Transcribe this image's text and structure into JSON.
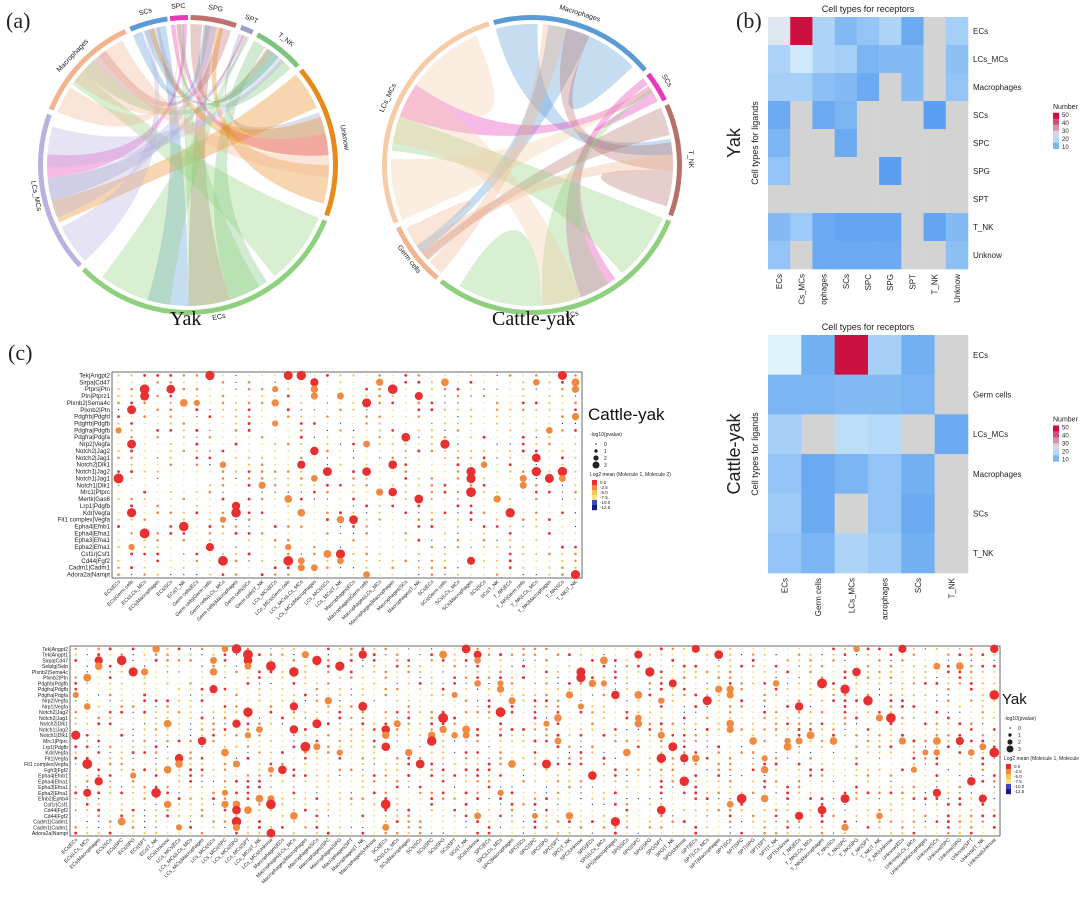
{
  "panel_labels": {
    "a": "(a)",
    "b": "(b)",
    "c": "(c)"
  },
  "chord_yak": {
    "title": "Yak",
    "sectors": [
      {
        "label": "SCs",
        "color": "#5b9bd5",
        "start": 337,
        "end": 352
      },
      {
        "label": "SPC",
        "color": "#e83ab8",
        "start": 353,
        "end": 360
      },
      {
        "label": "SPG",
        "color": "#c0716d",
        "start": 1,
        "end": 19
      },
      {
        "label": "SPT",
        "color": "#9e9ec8",
        "start": 21,
        "end": 26
      },
      {
        "label": "T_NK",
        "color": "#7cc47f",
        "start": 28,
        "end": 48
      },
      {
        "label": "Unknow",
        "color": "#e88a1a",
        "start": 50,
        "end": 110
      },
      {
        "label": "ECs",
        "color": "#8ed07e",
        "start": 112,
        "end": 225
      },
      {
        "label": "LCs_MCs",
        "color": "#b8b2e0",
        "start": 227,
        "end": 290
      },
      {
        "label": "Macrophages",
        "color": "#f2b58f",
        "start": 292,
        "end": 335
      }
    ]
  },
  "chord_cy": {
    "title": "Cattle-yak",
    "sectors": [
      {
        "label": "Macrophages",
        "color": "#5b9bd5",
        "start": 345,
        "end": 50
      },
      {
        "label": "SCs",
        "color": "#e83ab8",
        "start": 52,
        "end": 64
      },
      {
        "label": "T_NK",
        "color": "#b5726a",
        "start": 66,
        "end": 110
      },
      {
        "label": "ECs",
        "color": "#8ed07e",
        "start": 112,
        "end": 218
      },
      {
        "label": "Germ cells",
        "color": "#f2b58f",
        "start": 220,
        "end": 245
      },
      {
        "label": "LCs_MCs",
        "color": "#f6cba8",
        "start": 247,
        "end": 343
      }
    ]
  },
  "heatmap_yak": {
    "title": "Cell types for receptors",
    "side_label": "Yak",
    "ylabel": "Cell types for ligands",
    "legend_title": "Number",
    "legend_ticks": [
      "50",
      "40",
      "30",
      "20",
      "10"
    ],
    "cols": [
      "ECs",
      "LCs_MCs",
      "Macrophages",
      "SCs",
      "SPC",
      "SPG",
      "SPT",
      "T_NK",
      "Unknow"
    ],
    "rows": [
      "ECs",
      "LCs_MCs",
      "Macrophages",
      "SCs",
      "SPC",
      "SPG",
      "SPT",
      "T_NK",
      "Unknow"
    ],
    "values": [
      [
        22,
        55,
        14,
        9,
        11,
        14,
        6,
        0,
        13
      ],
      [
        14,
        18,
        14,
        13,
        8,
        9,
        9,
        0,
        10
      ],
      [
        13,
        13,
        10,
        9,
        6,
        0,
        9,
        0,
        11
      ],
      [
        6,
        0,
        6,
        8,
        0,
        0,
        0,
        4,
        0
      ],
      [
        8,
        0,
        0,
        6,
        0,
        0,
        0,
        0,
        0
      ],
      [
        11,
        0,
        0,
        0,
        0,
        4,
        0,
        0,
        0
      ],
      [
        0,
        0,
        0,
        0,
        0,
        0,
        0,
        0,
        0
      ],
      [
        9,
        12,
        6,
        5,
        5,
        5,
        0,
        5,
        9
      ],
      [
        11,
        0,
        6,
        6,
        6,
        6,
        0,
        0,
        10
      ]
    ]
  },
  "heatmap_cy": {
    "title": "Cell types for receptors",
    "side_label": "Cattle-yak",
    "ylabel": "Cell types for ligands",
    "legend_title": "Number",
    "legend_ticks": [
      "50",
      "40",
      "30",
      "20",
      "10"
    ],
    "cols": [
      "ECs",
      "Germ cells",
      "LCs_MCs",
      "Macrophages",
      "SCs",
      "T_NK"
    ],
    "rows": [
      "ECs",
      "Germ cells",
      "LCs_MCs",
      "Macrophages",
      "SCs",
      "T_NK"
    ],
    "values": [
      [
        20,
        7,
        55,
        13,
        7,
        0
      ],
      [
        8,
        8,
        9,
        9,
        8,
        0
      ],
      [
        13,
        0,
        16,
        15,
        0,
        6
      ],
      [
        11,
        6,
        8,
        11,
        7,
        0
      ],
      [
        12,
        6,
        0,
        11,
        6,
        0
      ],
      [
        11,
        8,
        14,
        12,
        7,
        0
      ]
    ]
  },
  "dot_cy": {
    "label": "Cattle-yak",
    "size_legend_title": "-log10(pvalue)",
    "size_legend_items": [
      "0",
      "1",
      "2",
      "3"
    ],
    "color_legend_title": "Log2 mean (Molecule 1, Molecule 2)",
    "color_legend_ticks": [
      "0.0",
      "-2.5",
      "-5.0",
      "-7.5",
      "-10.0",
      "-12.5"
    ],
    "rows": [
      "Tek|Angpt2",
      "Sirpa|Cd47",
      "Ptprs|Ptn",
      "Ptn|Ptprz1",
      "Plxnb2|Sema4c",
      "Plxnb2|Ptn",
      "Pdgfrb|Pdgfd",
      "Pdgfrb|Pdgfb",
      "Pdgfra|Pdgfb",
      "Pdgfra|Pdgfa",
      "Nrp2|Vegfa",
      "Notch2|Jag2",
      "Notch2|Jag1",
      "Notch2|Dlk1",
      "Notch1|Jag2",
      "Notch1|Jag1",
      "Notch1|Dlk1",
      "Mrc1|Ptprc",
      "Mertk|Gas6",
      "Lrp1|Pdgfb",
      "Kdr|Vegfa",
      "Flt1 complex|Vegfa",
      "Epha4|Efnb1",
      "Epha4|Efna1",
      "Epha3|Efna1",
      "Epha2|Efna1",
      "Csf1r|Csf1",
      "Cd44|Fgf2",
      "Cadm1|Cadm1",
      "Adora2a|Nampt"
    ],
    "cols": [
      "ECs|ECs",
      "ECs|Germ cells",
      "ECs|LCs_MCs",
      "ECs|Macrophages",
      "ECs|SCs",
      "ECs|T_NK",
      "Germ cells|ECs",
      "Germ cells|Germ cells",
      "Germ cells|LCs_MCs",
      "Germ cells|Macrophages",
      "Germ cells|SCs",
      "Germ cells|T_NK",
      "LCs_MCs|ECs",
      "LCs_MCs|Germ cells",
      "LCs_MCs|LCs_MCs",
      "LCs_MCs|Macrophages",
      "LCs_MCs|SCs",
      "LCs_MCs|T_NK",
      "Macrophages|ECs",
      "Macrophages|Germ cells",
      "Macrophages|LCs_MCs",
      "Macrophages|Macrophages",
      "Macrophages|SCs",
      "Macrophages|T_NK",
      "SCs|ECs",
      "SCs|Germ cells",
      "SCs|LCs_MCs",
      "SCs|Macrophages",
      "SCs|SCs",
      "SCs|T_NK",
      "T_NK|ECs",
      "T_NK|Germ cells",
      "T_NK|LCs_MCs",
      "T_NK|Macrophages",
      "T_NK|SCs",
      "T_NK|T_NK"
    ]
  },
  "dot_yak": {
    "label": "Yak",
    "size_legend_title": "-log10(pvalue)",
    "size_legend_items": [
      "0",
      "1",
      "2",
      "3"
    ],
    "color_legend_title": "Log2 mean (Molecule 1, Molecule 2)",
    "color_legend_ticks": [
      "0.0",
      "-2.5",
      "-5.0",
      "-7.5",
      "-10.0",
      "-12.5"
    ],
    "rows": [
      "Tek|Angpt2",
      "Tek|Angpt1",
      "Sirpa|Cd47",
      "Selplg|Selp",
      "Plxnb2|Sema4c",
      "Plxnb2|Ptn",
      "Pdgfrb|Pdgfb",
      "Pdgfra|Pdgfb",
      "Pdgfra|Pdgfa",
      "Nrp2|Vegfa",
      "Nrp1|Vegfa",
      "Notch2|Jag2",
      "Notch2|Jag1",
      "Notch2|Dlk1",
      "Notch1|Jag2",
      "Notch1|Dlk1",
      "Mrc1|Ptprc",
      "Lrp1|Pdgfb",
      "Kdr|Vegfa",
      "Flt1|Vegfa",
      "Flt1 complex|Vegfa",
      "Fgfr3|Fgf2",
      "Epha4|Efnb1",
      "Epha4|Efna1",
      "Epha3|Efna1",
      "Epha2|Efna1",
      "Efnb2|Ephb4",
      "Csf1r|Csf1",
      "Cd44|Fgf2",
      "Cd44|Fgf2",
      "Cadm1|Cadm1",
      "Cadm1|Cadm1",
      "Adora2a|Nampt"
    ],
    "cols": [
      "ECs|ECs",
      "ECs|LCs_MCs",
      "ECs|Macrophages",
      "ECs|SCs",
      "ECs|SPC",
      "ECs|SPG",
      "ECs|SPT",
      "ECs|T_NK",
      "ECs|Unknow",
      "LCs_MCs|ECs",
      "LCs_MCs|LCs_MCs",
      "LCs_MCs|Macrophages",
      "LCs_MCs|SCs",
      "LCs_MCs|SPC",
      "LCs_MCs|SPG",
      "LCs_MCs|SPT",
      "LCs_MCs|T_NK",
      "LCs_MCs|Unknow",
      "Macrophages|ECs",
      "Macrophages|LCs_MCs",
      "Macrophages|Macrophages",
      "Macrophages|SCs",
      "Macrophages|SPC",
      "Macrophages|SPG",
      "Macrophages|SPT",
      "Macrophages|T_NK",
      "Macrophages|Unknow",
      "SCs|ECs",
      "SCs|LCs_MCs",
      "SCs|Macrophages",
      "SCs|SCs",
      "SCs|SPC",
      "SCs|SPG",
      "SCs|SPT",
      "SCs|T_NK",
      "SCs|Unknow",
      "SPC|ECs",
      "SPC|LCs_MCs",
      "SPC|Macrophages",
      "SPC|SCs",
      "SPC|SPC",
      "SPC|SPG",
      "SPC|SPT",
      "SPC|T_NK",
      "SPC|Unknow",
      "SPG|ECs",
      "SPG|LCs_MCs",
      "SPG|Macrophages",
      "SPG|SCs",
      "SPG|SPC",
      "SPG|SPG",
      "SPG|SPT",
      "SPG|T_NK",
      "SPG|Unknow",
      "SPT|ECs",
      "SPT|LCs_MCs",
      "SPT|Macrophages",
      "SPT|SCs",
      "SPT|SPC",
      "SPT|SPG",
      "SPT|SPT",
      "SPT|T_NK",
      "SPT|Unknow",
      "T_NK|ECs",
      "T_NK|LCs_MCs",
      "T_NK|Macrophages",
      "T_NK|SCs",
      "T_NK|SPC",
      "T_NK|SPG",
      "T_NK|SPT",
      "T_NK|T_NK",
      "T_NK|Unknow",
      "Unknow|ECs",
      "Unknow|LCs_MCs",
      "Unknow|Macrophages",
      "Unknow|SCs",
      "Unknow|SPC",
      "Unknow|SPG",
      "Unknow|SPT",
      "Unknow|T_NK",
      "Unknow|Unknow"
    ]
  },
  "colors": {
    "heat_low": "#5aa0f0",
    "heat_mid": "#dff3fb",
    "heat_high": "#cc1040",
    "heat_na": "#d3d3d3"
  }
}
